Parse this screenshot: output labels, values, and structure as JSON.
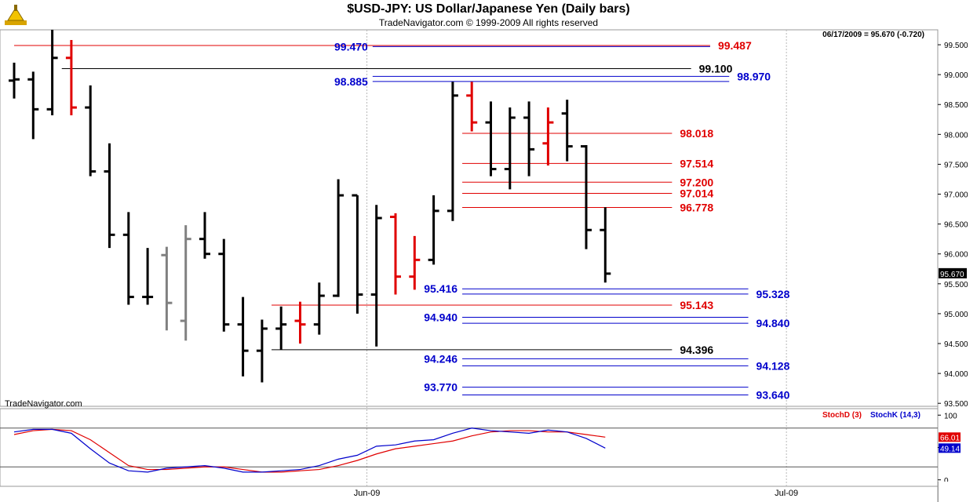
{
  "header": {
    "title": "$USD-JPY:  US Dollar/Japanese Yen  (Daily bars)",
    "subtitle": "TradeNavigator.com © 1999-2009 All rights reserved",
    "status": "06/17/2009 = 95.670 (-0.720)",
    "watermark": "TradeNavigator.com"
  },
  "colors": {
    "bull": "#000000",
    "bear": "#e00000",
    "neutral": "#808080",
    "fib_red": "#e00000",
    "fib_blue": "#0000cc",
    "fib_black": "#000000",
    "stoch_d": "#e00000",
    "stoch_k": "#0000cc"
  },
  "chart_data": [
    {
      "type": "ohlc",
      "title": "$USD-JPY:  US Dollar/Japanese Yen  (Daily bars)",
      "ylim": [
        93.45,
        99.75
      ],
      "y_ticks": [
        {
          "value": 99.5,
          "label": "99.500"
        },
        {
          "value": 99.0,
          "label": "99.000"
        },
        {
          "value": 98.5,
          "label": "98.500"
        },
        {
          "value": 98.0,
          "label": "98.000"
        },
        {
          "value": 97.5,
          "label": "97.500"
        },
        {
          "value": 97.0,
          "label": "97.000"
        },
        {
          "value": 96.5,
          "label": "96.500"
        },
        {
          "value": 96.0,
          "label": "96.000"
        },
        {
          "value": 95.5,
          "label": "95.500"
        },
        {
          "value": 95.0,
          "label": "95.000"
        },
        {
          "value": 94.5,
          "label": "94.500"
        },
        {
          "value": 94.0,
          "label": "94.000"
        },
        {
          "value": 93.5,
          "label": "93.500"
        }
      ],
      "x_labels": [
        {
          "index": 19,
          "label": "Jun-09"
        },
        {
          "index": 41,
          "label": "Jul-09"
        }
      ],
      "last_value_label": "95.670",
      "bars": [
        {
          "o": 98.9,
          "h": 99.2,
          "l": 98.6,
          "c": 98.92,
          "color": "bull"
        },
        {
          "o": 98.92,
          "h": 99.05,
          "l": 97.92,
          "c": 98.42,
          "color": "bull"
        },
        {
          "o": 98.42,
          "h": 99.75,
          "l": 98.32,
          "c": 99.28,
          "color": "bull"
        },
        {
          "o": 99.28,
          "h": 99.58,
          "l": 98.32,
          "c": 98.45,
          "color": "bear"
        },
        {
          "o": 98.45,
          "h": 98.82,
          "l": 97.3,
          "c": 97.38,
          "color": "bull"
        },
        {
          "o": 97.38,
          "h": 97.85,
          "l": 96.1,
          "c": 96.32,
          "color": "bull"
        },
        {
          "o": 96.32,
          "h": 96.7,
          "l": 95.15,
          "c": 95.28,
          "color": "bull"
        },
        {
          "o": 95.28,
          "h": 96.1,
          "l": 95.15,
          "c": 95.28,
          "color": "bull"
        },
        {
          "o": 95.98,
          "h": 96.12,
          "l": 94.72,
          "c": 95.18,
          "color": "neutral"
        },
        {
          "o": 94.88,
          "h": 96.48,
          "l": 94.55,
          "c": 96.25,
          "color": "neutral"
        },
        {
          "o": 96.25,
          "h": 96.7,
          "l": 95.92,
          "c": 96.0,
          "color": "bull"
        },
        {
          "o": 96.0,
          "h": 96.25,
          "l": 94.7,
          "c": 94.82,
          "color": "bull"
        },
        {
          "o": 94.82,
          "h": 95.28,
          "l": 93.95,
          "c": 94.38,
          "color": "bull"
        },
        {
          "o": 94.38,
          "h": 94.9,
          "l": 93.85,
          "c": 94.75,
          "color": "bull"
        },
        {
          "o": 94.75,
          "h": 95.12,
          "l": 94.4,
          "c": 94.82,
          "color": "bull"
        },
        {
          "o": 94.88,
          "h": 95.2,
          "l": 94.5,
          "c": 94.82,
          "color": "bear"
        },
        {
          "o": 94.82,
          "h": 95.52,
          "l": 94.65,
          "c": 95.3,
          "color": "bull"
        },
        {
          "o": 95.3,
          "h": 97.25,
          "l": 95.28,
          "c": 96.98,
          "color": "bull"
        },
        {
          "o": 96.98,
          "h": 96.98,
          "l": 95.0,
          "c": 95.32,
          "color": "bull"
        },
        {
          "o": 95.32,
          "h": 96.82,
          "l": 94.45,
          "c": 96.6,
          "color": "bull"
        },
        {
          "o": 96.62,
          "h": 96.68,
          "l": 95.32,
          "c": 95.62,
          "color": "bear"
        },
        {
          "o": 95.62,
          "h": 96.3,
          "l": 95.4,
          "c": 95.9,
          "color": "bear"
        },
        {
          "o": 95.9,
          "h": 96.98,
          "l": 95.82,
          "c": 96.72,
          "color": "bull"
        },
        {
          "o": 96.72,
          "h": 98.88,
          "l": 96.55,
          "c": 98.65,
          "color": "bull"
        },
        {
          "o": 98.65,
          "h": 98.88,
          "l": 98.05,
          "c": 98.2,
          "color": "bear"
        },
        {
          "o": 98.2,
          "h": 98.55,
          "l": 97.3,
          "c": 97.42,
          "color": "bull"
        },
        {
          "o": 97.42,
          "h": 98.45,
          "l": 97.08,
          "c": 98.28,
          "color": "bull"
        },
        {
          "o": 98.28,
          "h": 98.55,
          "l": 97.3,
          "c": 97.75,
          "color": "bull"
        },
        {
          "o": 97.85,
          "h": 98.45,
          "l": 97.48,
          "c": 98.2,
          "color": "bear"
        },
        {
          "o": 98.35,
          "h": 98.58,
          "l": 97.55,
          "c": 97.8,
          "color": "bull"
        },
        {
          "o": 97.8,
          "h": 97.82,
          "l": 96.08,
          "c": 96.4,
          "color": "bull"
        },
        {
          "o": 96.4,
          "h": 96.78,
          "l": 95.52,
          "c": 95.67,
          "color": "bull"
        }
      ],
      "levels": [
        {
          "value": 99.487,
          "label": "99.487",
          "color": "fib_red",
          "x0": 0,
          "x1": 36.5,
          "label_at": "right"
        },
        {
          "value": 99.47,
          "label": "99.470",
          "color": "fib_blue",
          "x0": 18.8,
          "x1": 36.5,
          "label_at": "left"
        },
        {
          "value": 99.1,
          "label": "99.100",
          "color": "fib_black",
          "x0": 2.5,
          "x1": 35.5,
          "label_at": "right"
        },
        {
          "value": 98.97,
          "label": "98.970",
          "color": "fib_blue",
          "x0": 18.8,
          "x1": 37.5,
          "label_at": "right"
        },
        {
          "value": 98.885,
          "label": "98.885",
          "color": "fib_blue",
          "x0": 18.8,
          "x1": 37.5,
          "label_at": "left"
        },
        {
          "value": 98.018,
          "label": "98.018",
          "color": "fib_red",
          "x0": 23.5,
          "x1": 34.5,
          "label_at": "right"
        },
        {
          "value": 97.514,
          "label": "97.514",
          "color": "fib_red",
          "x0": 23.5,
          "x1": 34.5,
          "label_at": "right"
        },
        {
          "value": 97.2,
          "label": "97.200",
          "color": "fib_red",
          "x0": 23.5,
          "x1": 34.5,
          "label_at": "right"
        },
        {
          "value": 97.014,
          "label": "97.014",
          "color": "fib_red",
          "x0": 23.5,
          "x1": 34.5,
          "label_at": "right"
        },
        {
          "value": 96.778,
          "label": "96.778",
          "color": "fib_red",
          "x0": 23.5,
          "x1": 34.5,
          "label_at": "right"
        },
        {
          "value": 95.416,
          "label": "95.416",
          "color": "fib_blue",
          "x0": 23.5,
          "x1": 38.5,
          "label_at": "left"
        },
        {
          "value": 95.328,
          "label": "95.328",
          "color": "fib_blue",
          "x0": 23.5,
          "x1": 38.5,
          "label_at": "right"
        },
        {
          "value": 95.143,
          "label": "95.143",
          "color": "fib_red",
          "x0": 13.5,
          "x1": 34.5,
          "label_at": "right"
        },
        {
          "value": 94.94,
          "label": "94.940",
          "color": "fib_blue",
          "x0": 23.5,
          "x1": 38.5,
          "label_at": "left"
        },
        {
          "value": 94.84,
          "label": "94.840",
          "color": "fib_blue",
          "x0": 23.5,
          "x1": 38.5,
          "label_at": "right"
        },
        {
          "value": 94.396,
          "label": "94.396",
          "color": "fib_black",
          "x0": 13.5,
          "x1": 34.5,
          "label_at": "right"
        },
        {
          "value": 94.246,
          "label": "94.246",
          "color": "fib_blue",
          "x0": 23.5,
          "x1": 38.5,
          "label_at": "left"
        },
        {
          "value": 94.128,
          "label": "94.128",
          "color": "fib_blue",
          "x0": 23.5,
          "x1": 38.5,
          "label_at": "right"
        },
        {
          "value": 93.77,
          "label": "93.770",
          "color": "fib_blue",
          "x0": 23.5,
          "x1": 38.5,
          "label_at": "left"
        },
        {
          "value": 93.64,
          "label": "93.640",
          "color": "fib_blue",
          "x0": 23.5,
          "x1": 38.5,
          "label_at": "right"
        }
      ]
    },
    {
      "type": "line",
      "title": "",
      "ylim": [
        -10,
        110
      ],
      "y_ticks": [
        {
          "value": 100,
          "label": "100"
        },
        {
          "value": 50,
          "label": "50"
        },
        {
          "value": 0,
          "label": "0"
        }
      ],
      "ref_lines": [
        80,
        20
      ],
      "series": [
        {
          "name": "StochD (3)",
          "color": "stoch_d",
          "last_label": "66.01",
          "values": [
            70,
            76,
            78,
            76,
            62,
            42,
            22,
            16,
            16,
            18,
            20,
            20,
            16,
            12,
            12,
            14,
            16,
            22,
            30,
            40,
            48,
            52,
            56,
            60,
            68,
            74,
            76,
            76,
            74,
            74,
            70,
            66
          ]
        },
        {
          "name": "StochK (14,3)",
          "color": "stoch_k",
          "last_label": "49.14",
          "values": [
            74,
            78,
            78,
            72,
            48,
            26,
            14,
            12,
            18,
            20,
            22,
            18,
            12,
            12,
            14,
            16,
            22,
            32,
            38,
            52,
            54,
            60,
            62,
            72,
            80,
            76,
            74,
            72,
            77,
            74,
            64,
            49
          ]
        }
      ]
    }
  ]
}
